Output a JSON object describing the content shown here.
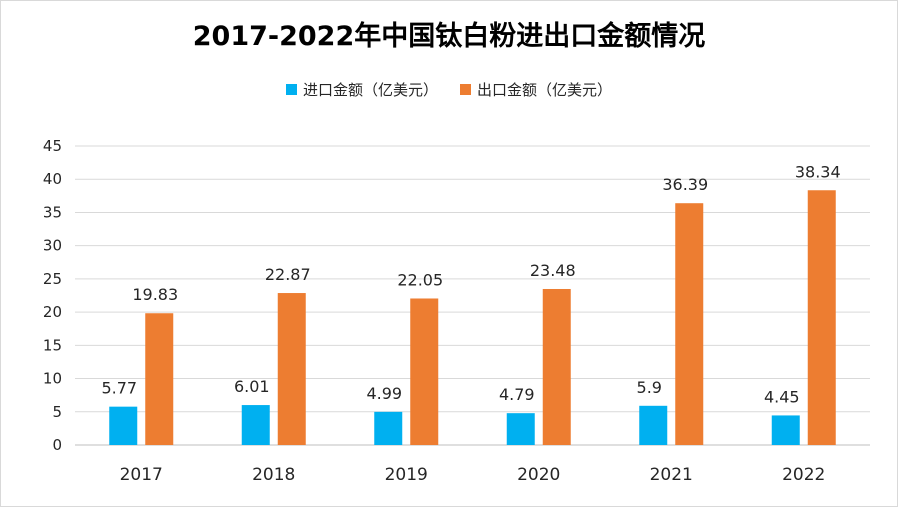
{
  "chart_data": {
    "type": "bar",
    "title": "2017-2022年中国钛白粉进出口金额情况",
    "categories": [
      "2017",
      "2018",
      "2019",
      "2020",
      "2021",
      "2022"
    ],
    "series": [
      {
        "name": "进口金额（亿美元）",
        "color": "#00b0f0",
        "values": [
          5.77,
          6.01,
          4.99,
          4.79,
          5.9,
          4.45
        ],
        "labels": [
          "5.77",
          "6.01",
          "4.99",
          "4.79",
          "5.9",
          "4.45"
        ]
      },
      {
        "name": "出口金额（亿美元）",
        "color": "#ed7d31",
        "values": [
          19.83,
          22.87,
          22.05,
          23.48,
          36.39,
          38.34
        ],
        "labels": [
          "19.83",
          "22.87",
          "22.05",
          "23.48",
          "36.39",
          "38.34"
        ]
      }
    ],
    "ylim": [
      0,
      45
    ],
    "yticks": [
      0,
      5,
      10,
      15,
      20,
      25,
      30,
      35,
      40,
      45
    ],
    "grid": true,
    "legend_position": "top"
  }
}
